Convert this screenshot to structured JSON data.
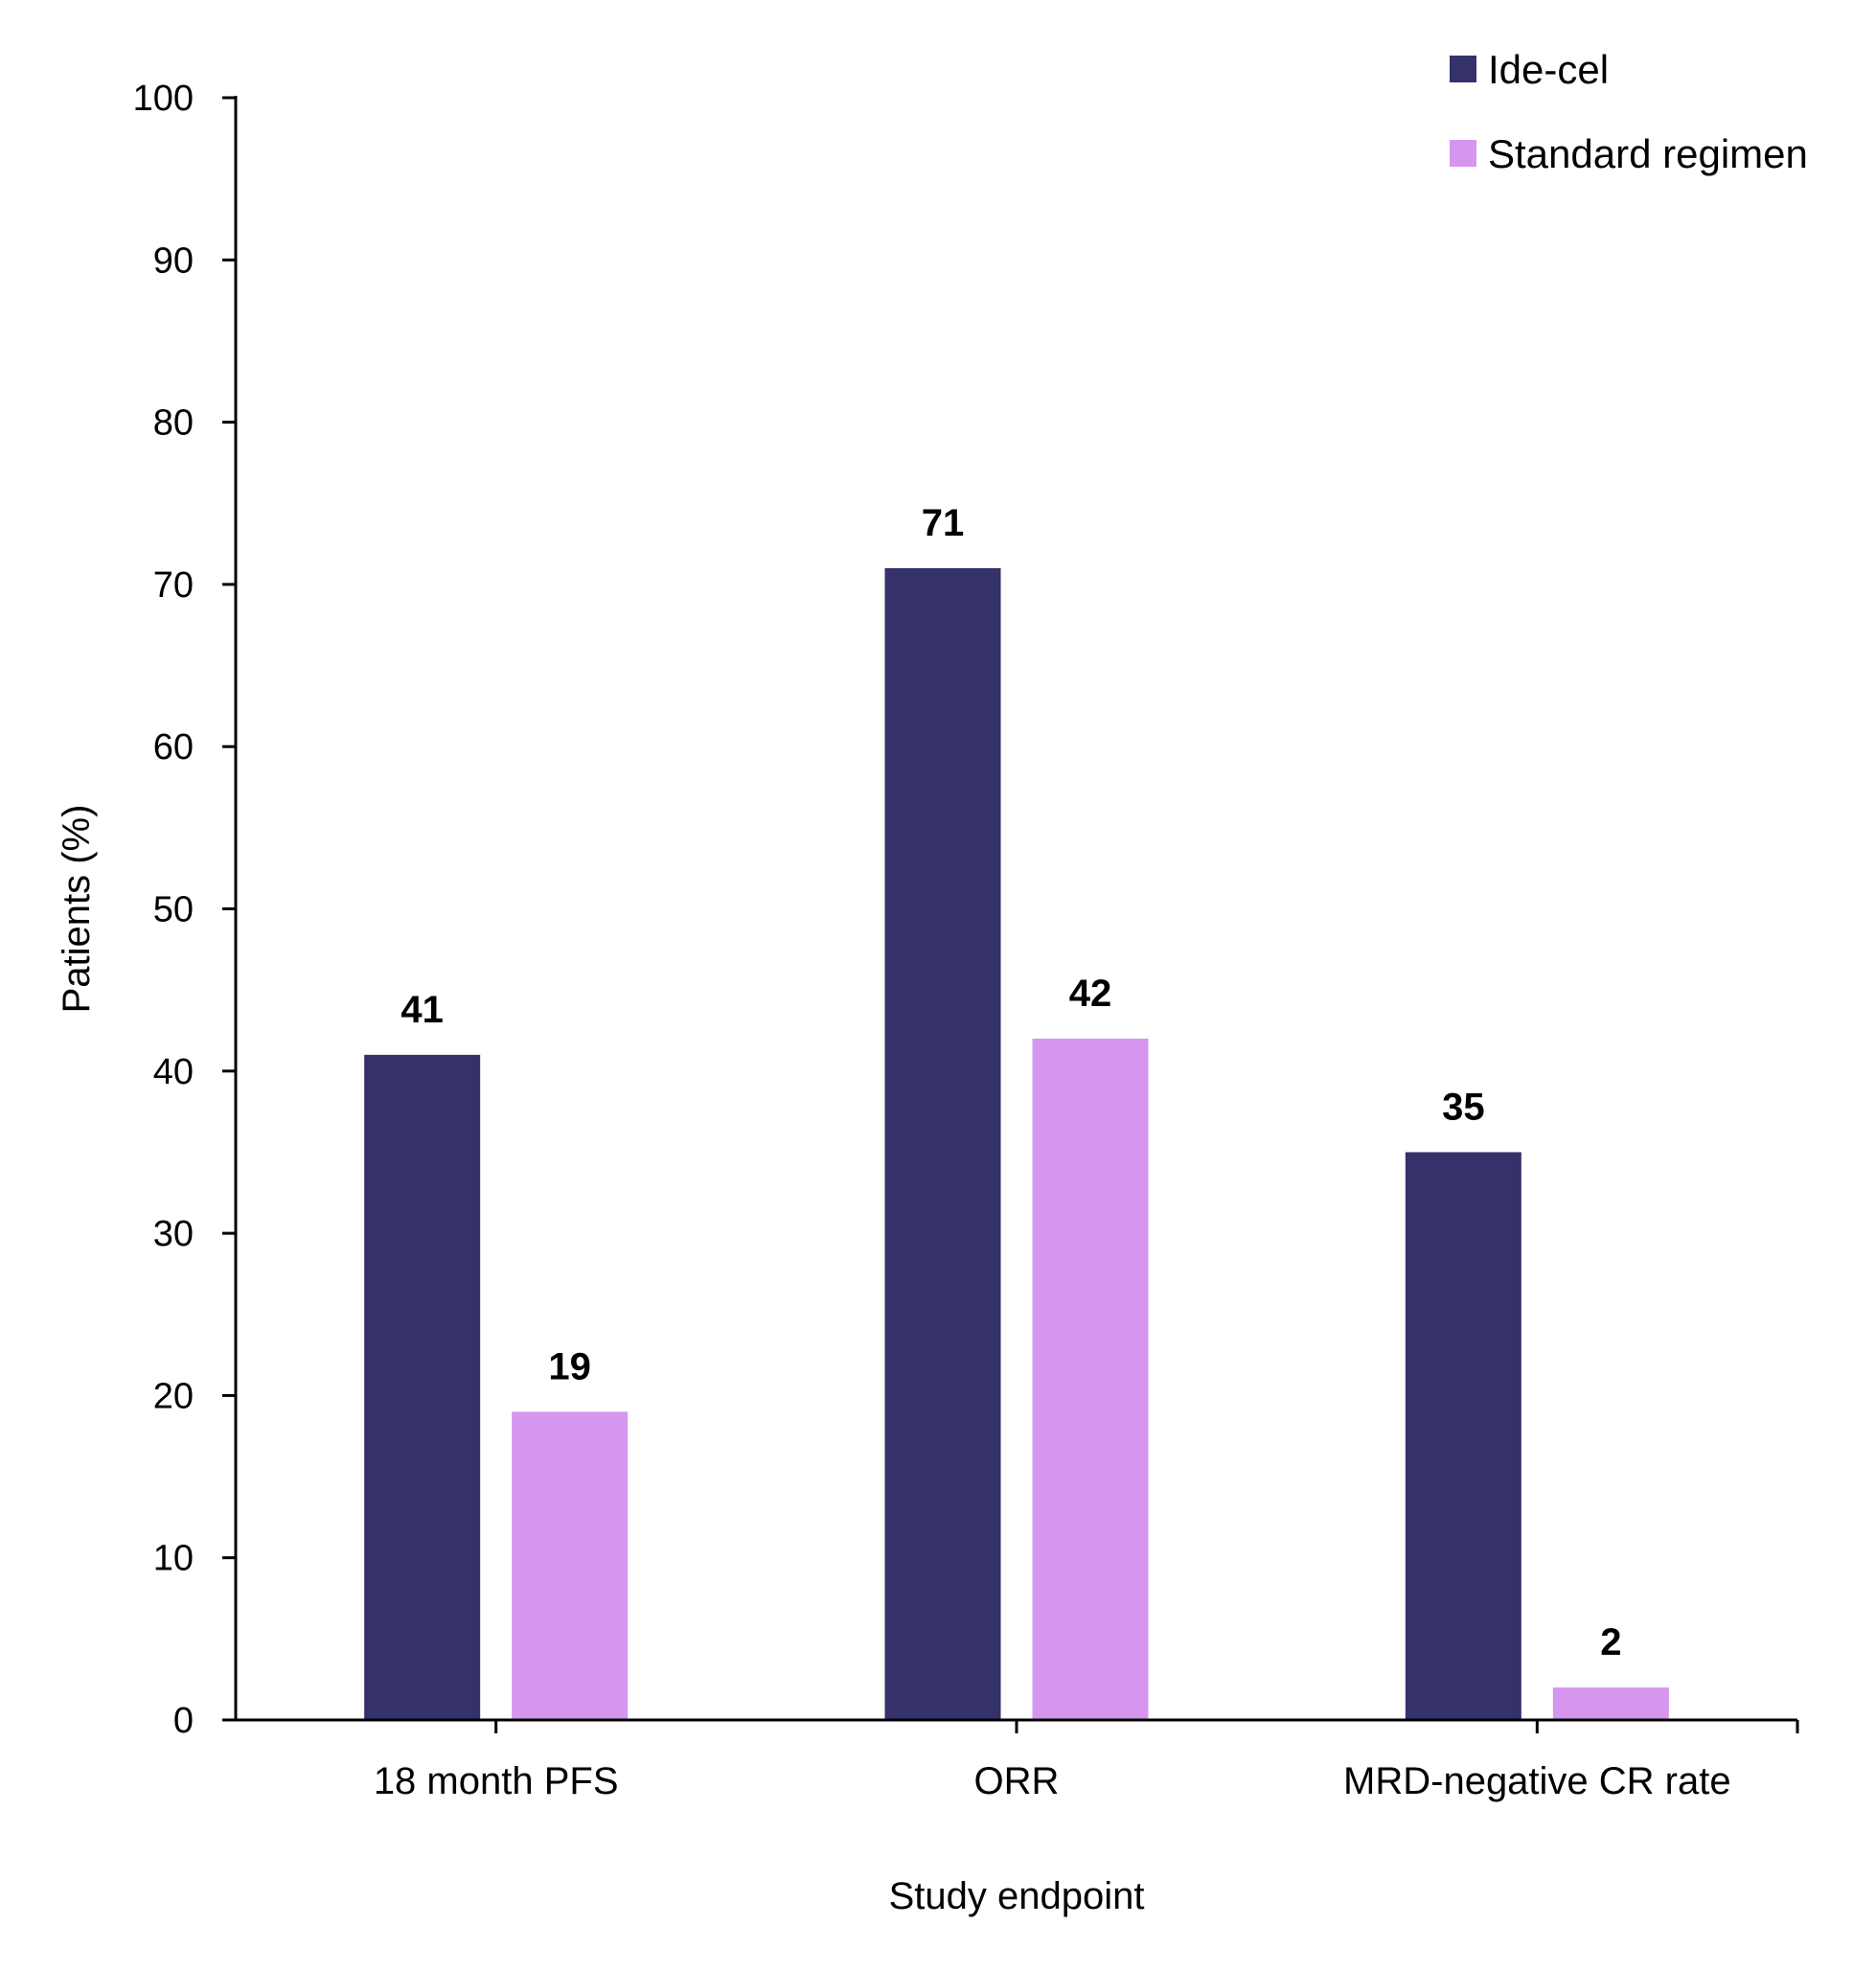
{
  "chart_data": {
    "type": "bar",
    "title": "",
    "xlabel": "Study endpoint",
    "ylabel": "Patients (%)",
    "ylim": [
      0,
      100
    ],
    "yticks": [
      0,
      10,
      20,
      30,
      40,
      50,
      60,
      70,
      80,
      90,
      100
    ],
    "categories": [
      "18 month PFS",
      "ORR",
      "MRD-negative CR rate"
    ],
    "series": [
      {
        "name": "Ide-cel",
        "color": "#35316a",
        "values": [
          41,
          71,
          35
        ]
      },
      {
        "name": "Standard regimen",
        "color": "#d597ee",
        "values": [
          19,
          42,
          2
        ]
      }
    ],
    "data_labels": true,
    "grid": false,
    "legend": {
      "position": "top-right"
    }
  }
}
